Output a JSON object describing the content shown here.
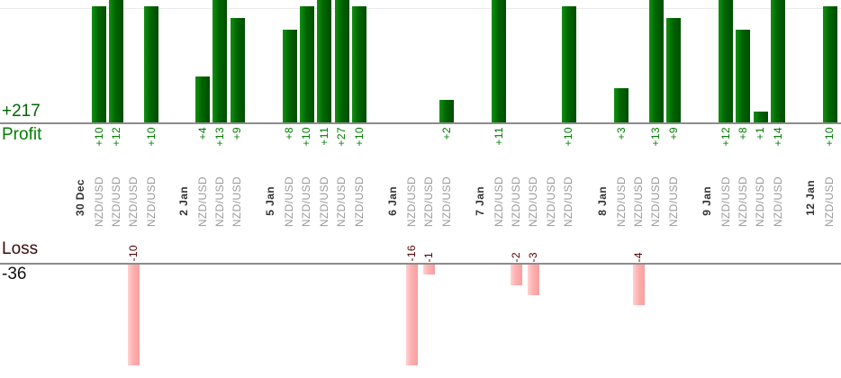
{
  "chart_data": {
    "type": "bar",
    "title": "",
    "profit_axis": {
      "total_label": "+217",
      "name": "Profit",
      "total": 217
    },
    "loss_axis": {
      "name": "Loss",
      "total_label": "-36",
      "total": -36
    },
    "legend": "none",
    "grid": "single light horizontal gridline in profit area",
    "groups": [
      {
        "date": "30 Dec",
        "trades": [
          {
            "symbol": "NZD/USD",
            "value": 10,
            "label": "+10"
          },
          {
            "symbol": "NZD/USD",
            "value": 12,
            "label": "+12"
          },
          {
            "symbol": "NZD/USD",
            "value": -10,
            "label": "-10"
          },
          {
            "symbol": "NZD/USD",
            "value": 10,
            "label": "+10"
          }
        ]
      },
      {
        "date": "2 Jan",
        "trades": [
          {
            "symbol": "NZD/USD",
            "value": 4,
            "label": "+4"
          },
          {
            "symbol": "NZD/USD",
            "value": 13,
            "label": "+13"
          },
          {
            "symbol": "NZD/USD",
            "value": 9,
            "label": "+9"
          }
        ]
      },
      {
        "date": "5 Jan",
        "trades": [
          {
            "symbol": "NZD/USD",
            "value": 8,
            "label": "+8"
          },
          {
            "symbol": "NZD/USD",
            "value": 10,
            "label": "+10"
          },
          {
            "symbol": "NZD/USD",
            "value": 11,
            "label": "+11"
          },
          {
            "symbol": "NZD/USD",
            "value": 27,
            "label": "+27"
          },
          {
            "symbol": "NZD/USD",
            "value": 10,
            "label": "+10"
          }
        ]
      },
      {
        "date": "6 Jan",
        "trades": [
          {
            "symbol": "NZD/USD",
            "value": -16,
            "label": "-16"
          },
          {
            "symbol": "NZD/USD",
            "value": -1,
            "label": "-1"
          },
          {
            "symbol": "NZD/USD",
            "value": 2,
            "label": "+2"
          }
        ]
      },
      {
        "date": "7 Jan",
        "trades": [
          {
            "symbol": "NZD/USD",
            "value": 11,
            "label": "+11"
          },
          {
            "symbol": "NZD/USD",
            "value": -2,
            "label": "-2"
          },
          {
            "symbol": "NZD/USD",
            "value": -3,
            "label": "-3"
          },
          {
            "symbol": "NZD/USD",
            "value": 0,
            "label": ""
          },
          {
            "symbol": "NZD/USD",
            "value": 10,
            "label": "+10"
          }
        ]
      },
      {
        "date": "8 Jan",
        "trades": [
          {
            "symbol": "NZD/USD",
            "value": 3,
            "label": "+3"
          },
          {
            "symbol": "NZD/USD",
            "value": -4,
            "label": "-4"
          },
          {
            "symbol": "NZD/USD",
            "value": 13,
            "label": "+13"
          },
          {
            "symbol": "NZD/USD",
            "value": 9,
            "label": "+9"
          }
        ]
      },
      {
        "date": "9 Jan",
        "trades": [
          {
            "symbol": "NZD/USD",
            "value": 12,
            "label": "+12"
          },
          {
            "symbol": "NZD/USD",
            "value": 8,
            "label": "+8"
          },
          {
            "symbol": "NZD/USD",
            "value": 1,
            "label": "+1"
          },
          {
            "symbol": "NZD/USD",
            "value": 14,
            "label": "+14"
          }
        ]
      },
      {
        "date": "12 Jan",
        "trades": [
          {
            "symbol": "NZD/USD",
            "value": 10,
            "label": "+10"
          }
        ]
      }
    ],
    "colors": {
      "profit_bar_light": "#129012",
      "profit_bar": "#006600",
      "profit_bar_dark": "#004c00",
      "profit_value_text": "#007d00",
      "profit_total_text": "#006600",
      "profit_name_text": "#008000",
      "loss_bar_light": "#ffd2d2",
      "loss_bar": "#ffafaf",
      "loss_bar_dark": "#f5a0a0",
      "loss_value_text": "#550000",
      "loss_name_text": "#3a0a0a",
      "loss_total_text": "#111111",
      "symbol_text": "#9a9a9a",
      "date_text": "#333333",
      "axis_line": "#8c8c8c",
      "gridline": "#ebebeb"
    }
  }
}
